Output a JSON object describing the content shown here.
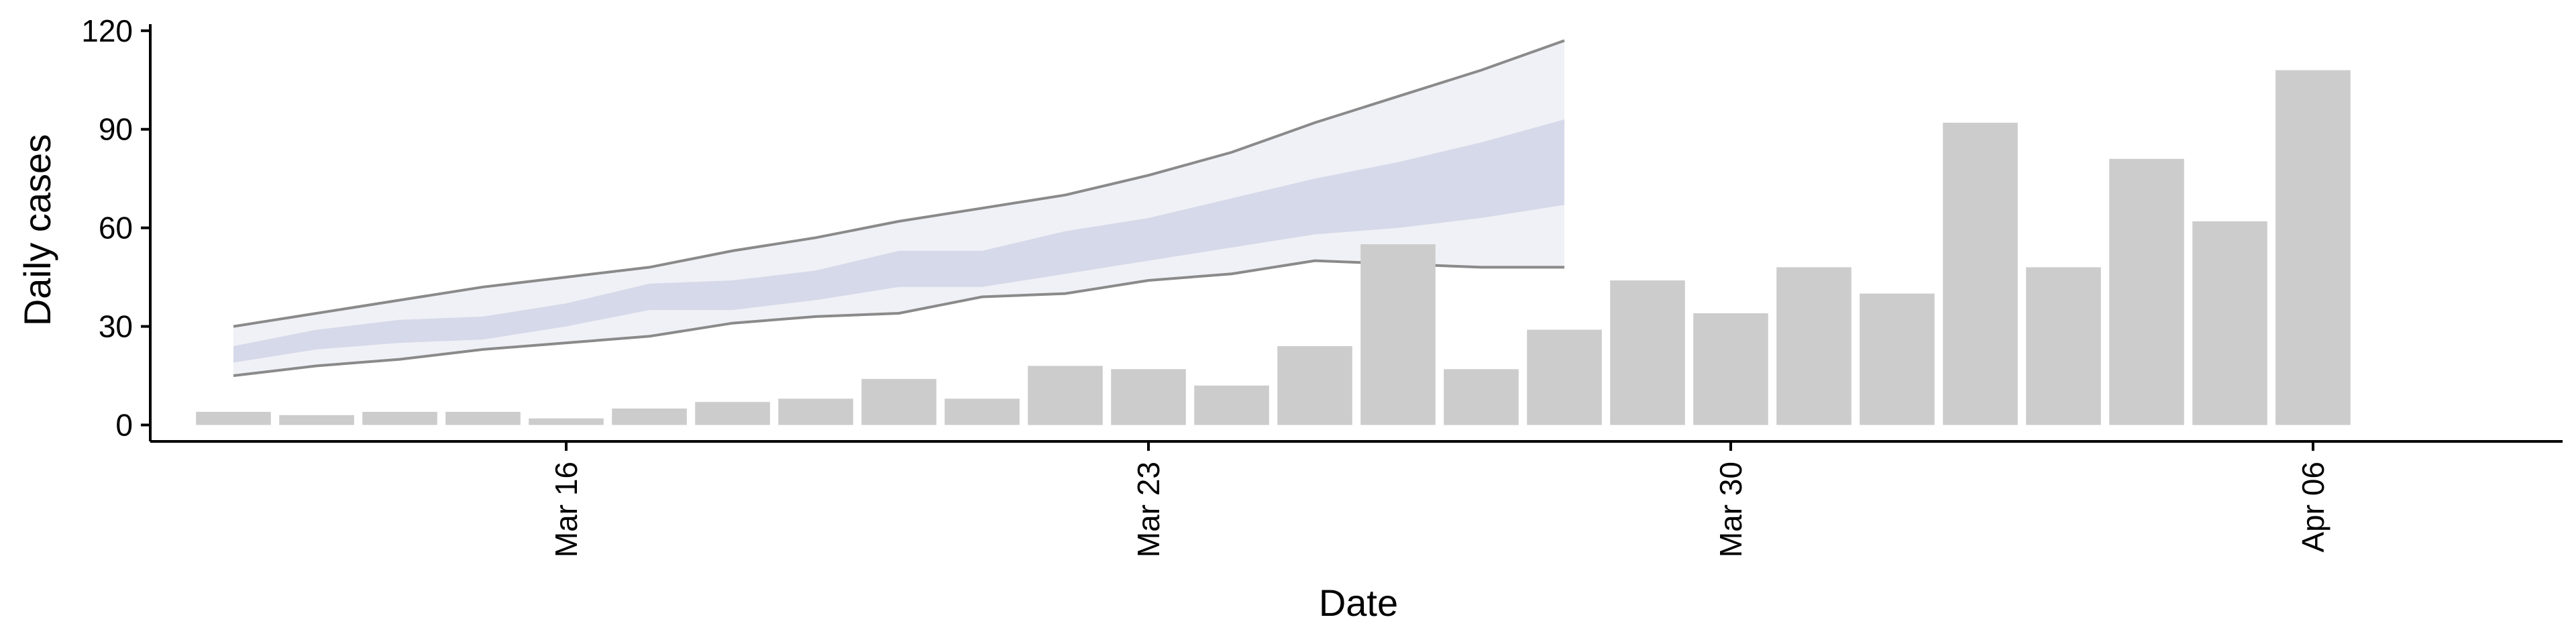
{
  "chart_data": {
    "type": "bar",
    "xlabel": "Date",
    "ylabel": "Daily cases",
    "ylim": [
      -5,
      122
    ],
    "y_ticks": [
      0,
      30,
      60,
      90,
      120
    ],
    "x_range": [
      "2020-03-11",
      "2020-04-09"
    ],
    "x_ticks": [
      {
        "date": "2020-03-16",
        "label": "Mar 16"
      },
      {
        "date": "2020-03-23",
        "label": "Mar 23"
      },
      {
        "date": "2020-03-30",
        "label": "Mar 30"
      },
      {
        "date": "2020-04-06",
        "label": "Apr 06"
      }
    ],
    "grid": false,
    "legend": "none",
    "bar_color": "#cccccc",
    "band_color_outer": "#c9cde0",
    "band_color_inner": "#a5add0",
    "band_line_color": "#8a8a8a",
    "bars": [
      {
        "date": "2020-03-12",
        "value": 4
      },
      {
        "date": "2020-03-13",
        "value": 3
      },
      {
        "date": "2020-03-14",
        "value": 4
      },
      {
        "date": "2020-03-15",
        "value": 4
      },
      {
        "date": "2020-03-16",
        "value": 2
      },
      {
        "date": "2020-03-17",
        "value": 5
      },
      {
        "date": "2020-03-18",
        "value": 7
      },
      {
        "date": "2020-03-19",
        "value": 8
      },
      {
        "date": "2020-03-20",
        "value": 14
      },
      {
        "date": "2020-03-21",
        "value": 8
      },
      {
        "date": "2020-03-22",
        "value": 18
      },
      {
        "date": "2020-03-23",
        "value": 17
      },
      {
        "date": "2020-03-24",
        "value": 12
      },
      {
        "date": "2020-03-25",
        "value": 24
      },
      {
        "date": "2020-03-26",
        "value": 55
      },
      {
        "date": "2020-03-27",
        "value": 17
      },
      {
        "date": "2020-03-28",
        "value": 29
      },
      {
        "date": "2020-03-29",
        "value": 44
      },
      {
        "date": "2020-03-30",
        "value": 34
      },
      {
        "date": "2020-03-31",
        "value": 48
      },
      {
        "date": "2020-04-01",
        "value": 40
      },
      {
        "date": "2020-04-02",
        "value": 92
      },
      {
        "date": "2020-04-03",
        "value": 48
      },
      {
        "date": "2020-04-04",
        "value": 81
      },
      {
        "date": "2020-04-05",
        "value": 62
      },
      {
        "date": "2020-04-06",
        "value": 108
      }
    ],
    "bands": [
      {
        "date": "2020-03-12",
        "low90": 15,
        "low50": 19,
        "high50": 24,
        "high90": 30
      },
      {
        "date": "2020-03-13",
        "low90": 18,
        "low50": 23,
        "high50": 29,
        "high90": 34
      },
      {
        "date": "2020-03-14",
        "low90": 20,
        "low50": 25,
        "high50": 32,
        "high90": 38
      },
      {
        "date": "2020-03-15",
        "low90": 23,
        "low50": 26,
        "high50": 33,
        "high90": 42
      },
      {
        "date": "2020-03-16",
        "low90": 25,
        "low50": 30,
        "high50": 37,
        "high90": 45
      },
      {
        "date": "2020-03-17",
        "low90": 27,
        "low50": 35,
        "high50": 43,
        "high90": 48
      },
      {
        "date": "2020-03-18",
        "low90": 31,
        "low50": 35,
        "high50": 44,
        "high90": 53
      },
      {
        "date": "2020-03-19",
        "low90": 33,
        "low50": 38,
        "high50": 47,
        "high90": 57
      },
      {
        "date": "2020-03-20",
        "low90": 34,
        "low50": 42,
        "high50": 53,
        "high90": 62
      },
      {
        "date": "2020-03-21",
        "low90": 39,
        "low50": 42,
        "high50": 53,
        "high90": 66
      },
      {
        "date": "2020-03-22",
        "low90": 40,
        "low50": 46,
        "high50": 59,
        "high90": 70
      },
      {
        "date": "2020-03-23",
        "low90": 44,
        "low50": 50,
        "high50": 63,
        "high90": 76
      },
      {
        "date": "2020-03-24",
        "low90": 46,
        "low50": 54,
        "high50": 69,
        "high90": 83
      },
      {
        "date": "2020-03-25",
        "low90": 50,
        "low50": 58,
        "high50": 75,
        "high90": 92
      },
      {
        "date": "2020-03-26",
        "low90": 49,
        "low50": 60,
        "high50": 80,
        "high90": 100
      },
      {
        "date": "2020-03-27",
        "low90": 48,
        "low50": 63,
        "high50": 86,
        "high90": 108
      },
      {
        "date": "2020-03-28",
        "low90": 48,
        "low50": 67,
        "high50": 93,
        "high90": 117
      }
    ]
  }
}
